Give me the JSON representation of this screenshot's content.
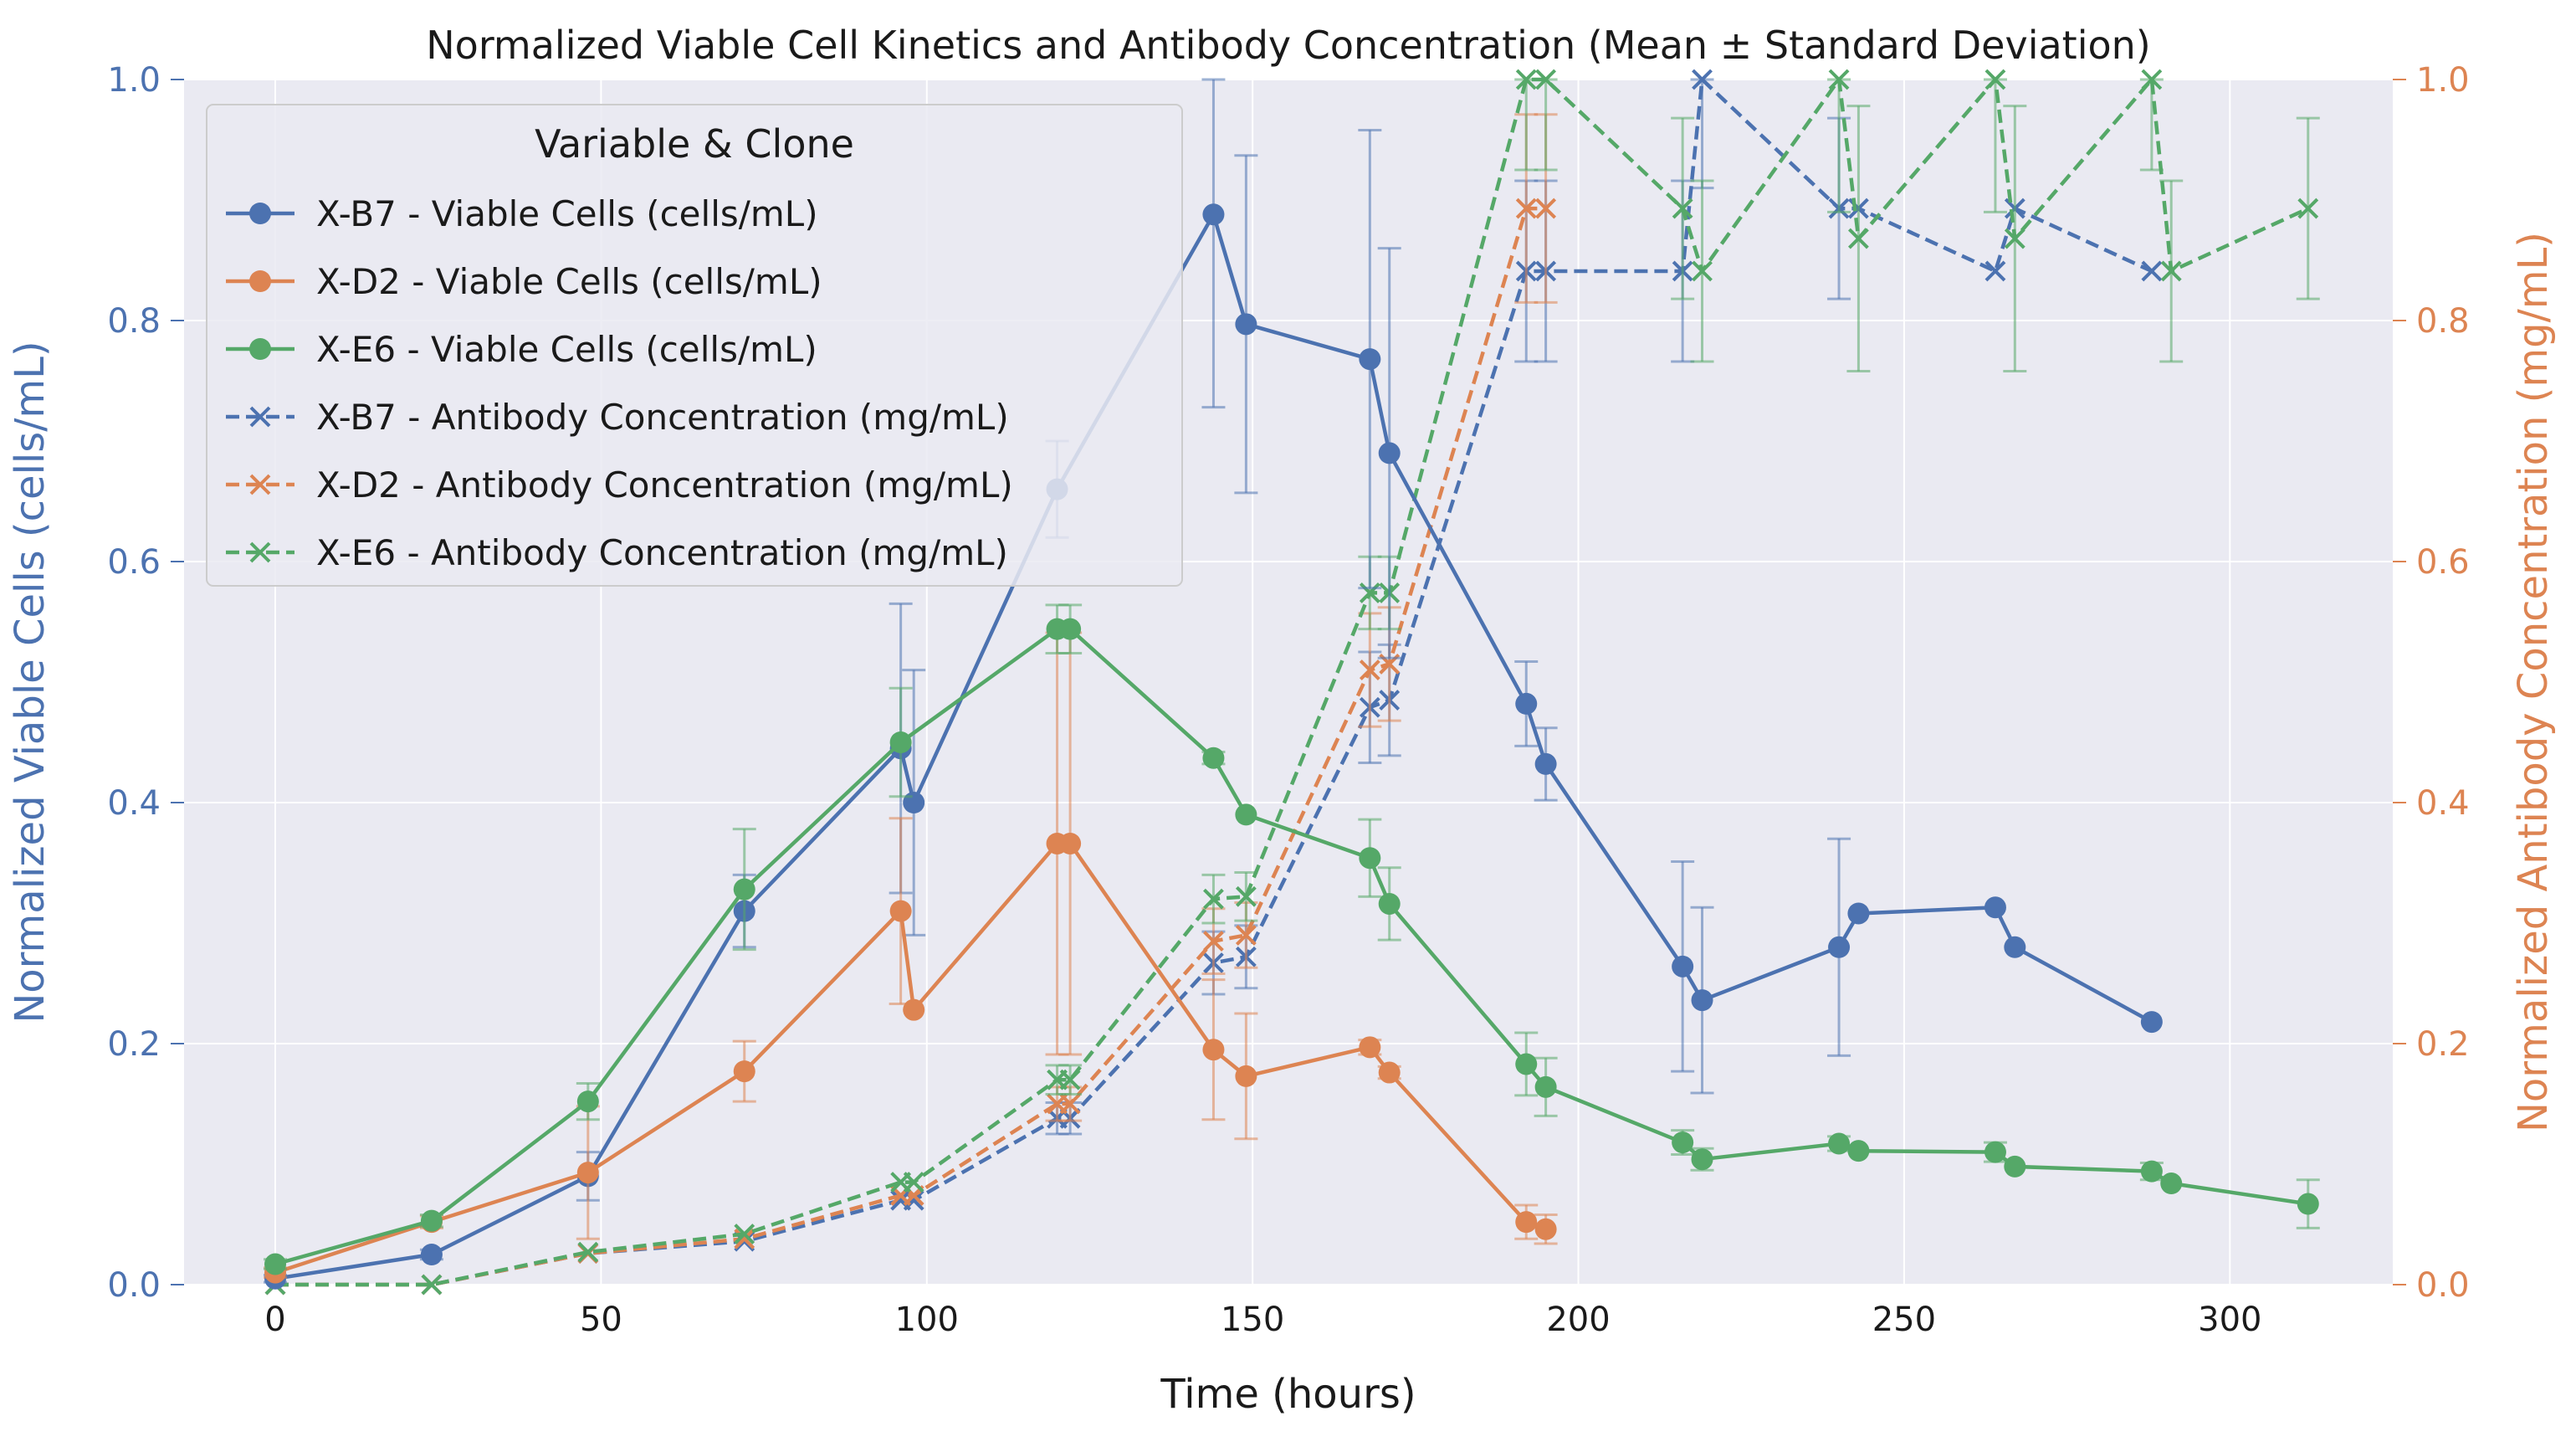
{
  "chart_data": {
    "type": "line",
    "title": "Normalized Viable Cell Kinetics and Antibody Concentration (Mean ± Standard Deviation)",
    "xlabel": "Time (hours)",
    "ylabel": "Normalized Viable Cells (cells/mL)",
    "ylabel_right": "Normalized Antibody Concentration (mg/mL)",
    "xlim": [
      -14,
      325
    ],
    "ylim": [
      0,
      1
    ],
    "ylim_right": [
      0,
      1
    ],
    "x_ticks": [
      "0",
      "50",
      "100",
      "150",
      "200",
      "250",
      "300"
    ],
    "y_ticks": [
      "0.0",
      "0.2",
      "0.4",
      "0.6",
      "0.8",
      "1.0"
    ],
    "y_right_ticks": [
      "0.0",
      "0.2",
      "0.4",
      "0.6",
      "0.8",
      "1.0"
    ],
    "grid": true,
    "legend": {
      "title": "Variable & Clone",
      "placement": "top-left",
      "entries": [
        "X-B7 - Viable Cells (cells/mL)",
        "X-D2 - Viable Cells (cells/mL)",
        "X-E6 - Viable Cells (cells/mL)",
        "X-B7 - Antibody Concentration (mg/mL)",
        "X-D2 - Antibody Concentration (mg/mL)",
        "X-E6 - Antibody Concentration (mg/mL)"
      ]
    },
    "colors": {
      "X-B7": "#4c72b0",
      "X-D2": "#dd8452",
      "X-E6": "#55a868",
      "left_axis": "#4c72b0",
      "right_axis": "#dd8452",
      "background": "#eaeaf2",
      "grid": "#ffffff"
    },
    "series": [
      {
        "name": "X-B7 - Viable Cells (cells/mL)",
        "clone": "X-B7",
        "kind": "viable",
        "axis": "left",
        "marker": "circle",
        "line": "solid",
        "points": [
          {
            "x": 0,
            "y": 0.005,
            "err": 0.003
          },
          {
            "x": 24,
            "y": 0.025,
            "err": 0.004
          },
          {
            "x": 48,
            "y": 0.09,
            "err": 0.02
          },
          {
            "x": 72,
            "y": 0.31,
            "err": 0.03
          },
          {
            "x": 96,
            "y": 0.445,
            "err": 0.12
          },
          {
            "x": 98,
            "y": 0.4,
            "err": 0.11
          },
          {
            "x": 120,
            "y": 0.66,
            "err": 0.04
          },
          {
            "x": 144,
            "y": 0.888,
            "err": 0.16
          },
          {
            "x": 149,
            "y": 0.797,
            "err": 0.14
          },
          {
            "x": 168,
            "y": 0.768,
            "err": 0.19
          },
          {
            "x": 171,
            "y": 0.69,
            "err": 0.17
          },
          {
            "x": 192,
            "y": 0.482,
            "err": 0.035
          },
          {
            "x": 195,
            "y": 0.432,
            "err": 0.03
          },
          {
            "x": 216,
            "y": 0.264,
            "err": 0.087
          },
          {
            "x": 219,
            "y": 0.236,
            "err": 0.077
          },
          {
            "x": 240,
            "y": 0.28,
            "err": 0.09
          },
          {
            "x": 243,
            "y": 0.308
          },
          {
            "x": 264,
            "y": 0.313
          },
          {
            "x": 267,
            "y": 0.28
          },
          {
            "x": 288,
            "y": 0.218
          }
        ]
      },
      {
        "name": "X-D2 - Viable Cells (cells/mL)",
        "clone": "X-D2",
        "kind": "viable",
        "axis": "left",
        "marker": "circle",
        "line": "solid",
        "points": [
          {
            "x": 0,
            "y": 0.01,
            "err": 0.004
          },
          {
            "x": 24,
            "y": 0.052,
            "err": 0.005
          },
          {
            "x": 48,
            "y": 0.093,
            "err": 0.055
          },
          {
            "x": 72,
            "y": 0.177,
            "err": 0.025
          },
          {
            "x": 96,
            "y": 0.31,
            "err": 0.077
          },
          {
            "x": 98,
            "y": 0.228
          },
          {
            "x": 120,
            "y": 0.366,
            "err": 0.175
          },
          {
            "x": 122,
            "y": 0.366,
            "err": 0.175
          },
          {
            "x": 144,
            "y": 0.195,
            "err": 0.058
          },
          {
            "x": 149,
            "y": 0.173,
            "err": 0.052
          },
          {
            "x": 168,
            "y": 0.197,
            "err": 0.006
          },
          {
            "x": 171,
            "y": 0.176,
            "err": 0.005
          },
          {
            "x": 192,
            "y": 0.052,
            "err": 0.014
          },
          {
            "x": 195,
            "y": 0.046,
            "err": 0.012
          }
        ]
      },
      {
        "name": "X-E6 - Viable Cells (cells/mL)",
        "clone": "X-E6",
        "kind": "viable",
        "axis": "left",
        "marker": "circle",
        "line": "solid",
        "points": [
          {
            "x": 0,
            "y": 0.017,
            "err": 0.004
          },
          {
            "x": 24,
            "y": 0.053,
            "err": 0.005
          },
          {
            "x": 48,
            "y": 0.152,
            "err": 0.015
          },
          {
            "x": 72,
            "y": 0.328,
            "err": 0.05
          },
          {
            "x": 96,
            "y": 0.45,
            "err": 0.045
          },
          {
            "x": 120,
            "y": 0.544,
            "err": 0.02
          },
          {
            "x": 122,
            "y": 0.544,
            "err": 0.02
          },
          {
            "x": 144,
            "y": 0.437,
            "err": 0.005
          },
          {
            "x": 149,
            "y": 0.39
          },
          {
            "x": 168,
            "y": 0.354,
            "err": 0.032
          },
          {
            "x": 171,
            "y": 0.316,
            "err": 0.03
          },
          {
            "x": 192,
            "y": 0.183,
            "err": 0.026
          },
          {
            "x": 195,
            "y": 0.164,
            "err": 0.024
          },
          {
            "x": 216,
            "y": 0.118,
            "err": 0.01
          },
          {
            "x": 219,
            "y": 0.104,
            "err": 0.009
          },
          {
            "x": 240,
            "y": 0.117,
            "err": 0.006
          },
          {
            "x": 243,
            "y": 0.111
          },
          {
            "x": 264,
            "y": 0.11,
            "err": 0.008
          },
          {
            "x": 267,
            "y": 0.098
          },
          {
            "x": 288,
            "y": 0.094,
            "err": 0.007
          },
          {
            "x": 291,
            "y": 0.084
          },
          {
            "x": 312,
            "y": 0.067,
            "err": 0.02
          }
        ]
      },
      {
        "name": "X-B7 - Antibody Concentration (mg/mL)",
        "clone": "X-B7",
        "kind": "antibody",
        "axis": "right",
        "marker": "x",
        "line": "dashed",
        "points": [
          {
            "x": 0,
            "y": 0.0
          },
          {
            "x": 24,
            "y": 0.0
          },
          {
            "x": 48,
            "y": 0.026
          },
          {
            "x": 72,
            "y": 0.036
          },
          {
            "x": 96,
            "y": 0.07
          },
          {
            "x": 98,
            "y": 0.07
          },
          {
            "x": 120,
            "y": 0.138,
            "err": 0.013
          },
          {
            "x": 122,
            "y": 0.138,
            "err": 0.013
          },
          {
            "x": 144,
            "y": 0.267,
            "err": 0.026
          },
          {
            "x": 149,
            "y": 0.272,
            "err": 0.026
          },
          {
            "x": 168,
            "y": 0.479,
            "err": 0.046
          },
          {
            "x": 171,
            "y": 0.485,
            "err": 0.046
          },
          {
            "x": 192,
            "y": 0.841,
            "err": 0.075
          },
          {
            "x": 195,
            "y": 0.841,
            "err": 0.075
          },
          {
            "x": 216,
            "y": 0.841,
            "err": 0.075
          },
          {
            "x": 219,
            "y": 1.0,
            "err": 0.09
          },
          {
            "x": 240,
            "y": 0.893,
            "err": 0.075
          },
          {
            "x": 243,
            "y": 0.893
          },
          {
            "x": 264,
            "y": 0.841
          },
          {
            "x": 267,
            "y": 0.893
          },
          {
            "x": 288,
            "y": 0.841
          }
        ]
      },
      {
        "name": "X-D2 - Antibody Concentration (mg/mL)",
        "clone": "X-D2",
        "kind": "antibody",
        "axis": "right",
        "marker": "x",
        "line": "dashed",
        "points": [
          {
            "x": 0,
            "y": 0.0
          },
          {
            "x": 24,
            "y": 0.0
          },
          {
            "x": 48,
            "y": 0.026
          },
          {
            "x": 72,
            "y": 0.038
          },
          {
            "x": 96,
            "y": 0.074
          },
          {
            "x": 98,
            "y": 0.074
          },
          {
            "x": 120,
            "y": 0.15,
            "err": 0.014
          },
          {
            "x": 122,
            "y": 0.15,
            "err": 0.014
          },
          {
            "x": 144,
            "y": 0.285,
            "err": 0.027
          },
          {
            "x": 149,
            "y": 0.29,
            "err": 0.027
          },
          {
            "x": 168,
            "y": 0.51,
            "err": 0.047
          },
          {
            "x": 171,
            "y": 0.515,
            "err": 0.047
          },
          {
            "x": 192,
            "y": 0.893,
            "err": 0.078
          },
          {
            "x": 195,
            "y": 0.893,
            "err": 0.078
          }
        ]
      },
      {
        "name": "X-E6 - Antibody Concentration (mg/mL)",
        "clone": "X-E6",
        "kind": "antibody",
        "axis": "right",
        "marker": "x",
        "line": "dashed",
        "points": [
          {
            "x": 0,
            "y": 0.0
          },
          {
            "x": 24,
            "y": 0.0
          },
          {
            "x": 48,
            "y": 0.027
          },
          {
            "x": 72,
            "y": 0.042
          },
          {
            "x": 96,
            "y": 0.085
          },
          {
            "x": 98,
            "y": 0.085
          },
          {
            "x": 120,
            "y": 0.17,
            "err": 0.012
          },
          {
            "x": 122,
            "y": 0.17,
            "err": 0.012
          },
          {
            "x": 144,
            "y": 0.32,
            "err": 0.02
          },
          {
            "x": 149,
            "y": 0.322,
            "err": 0.02
          },
          {
            "x": 168,
            "y": 0.574,
            "err": 0.03
          },
          {
            "x": 171,
            "y": 0.574,
            "err": 0.03
          },
          {
            "x": 192,
            "y": 1.0,
            "err": 0.075
          },
          {
            "x": 195,
            "y": 1.0,
            "err": 0.075
          },
          {
            "x": 216,
            "y": 0.893,
            "err": 0.075
          },
          {
            "x": 219,
            "y": 0.841,
            "err": 0.075
          },
          {
            "x": 240,
            "y": 1.0,
            "err": 0.11
          },
          {
            "x": 243,
            "y": 0.868,
            "err": 0.11
          },
          {
            "x": 264,
            "y": 1.0,
            "err": 0.11
          },
          {
            "x": 267,
            "y": 0.868,
            "err": 0.11
          },
          {
            "x": 288,
            "y": 1.0,
            "err": 0.075
          },
          {
            "x": 291,
            "y": 0.841,
            "err": 0.075
          },
          {
            "x": 312,
            "y": 0.893,
            "err": 0.075
          }
        ]
      }
    ]
  }
}
